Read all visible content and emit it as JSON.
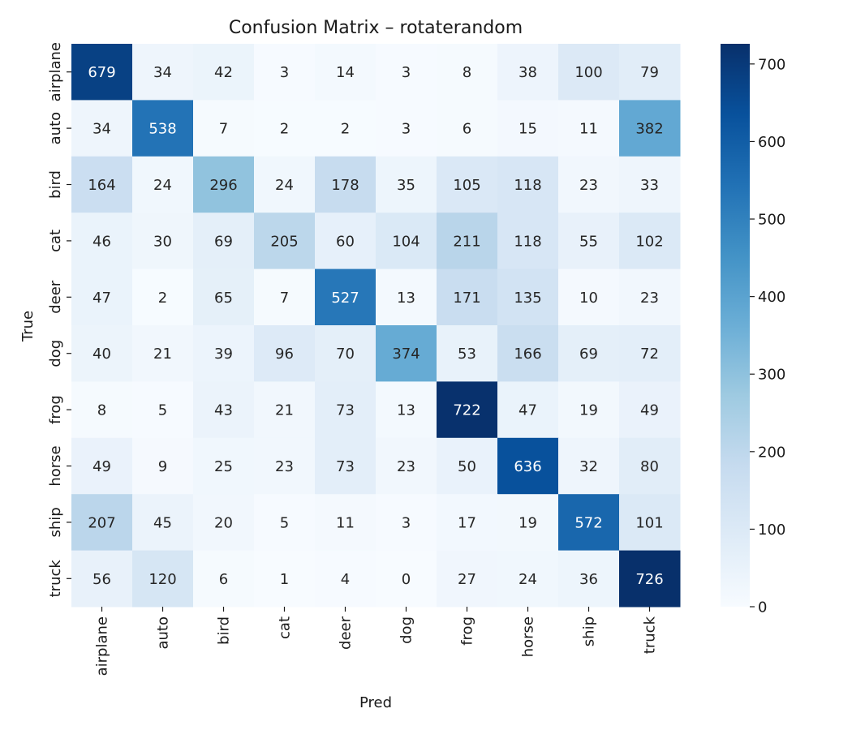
{
  "chart_data": {
    "type": "heatmap",
    "title": "Confusion Matrix – rotaterandom",
    "xlabel": "Pred",
    "ylabel": "True",
    "x_categories": [
      "airplane",
      "auto",
      "bird",
      "cat",
      "deer",
      "dog",
      "frog",
      "horse",
      "ship",
      "truck"
    ],
    "y_categories": [
      "airplane",
      "auto",
      "bird",
      "cat",
      "deer",
      "dog",
      "frog",
      "horse",
      "ship",
      "truck"
    ],
    "values": [
      [
        679,
        34,
        42,
        3,
        14,
        3,
        8,
        38,
        100,
        79
      ],
      [
        34,
        538,
        7,
        2,
        2,
        3,
        6,
        15,
        11,
        382
      ],
      [
        164,
        24,
        296,
        24,
        178,
        35,
        105,
        118,
        23,
        33
      ],
      [
        46,
        30,
        69,
        205,
        60,
        104,
        211,
        118,
        55,
        102
      ],
      [
        47,
        2,
        65,
        7,
        527,
        13,
        171,
        135,
        10,
        23
      ],
      [
        40,
        21,
        39,
        96,
        70,
        374,
        53,
        166,
        69,
        72
      ],
      [
        8,
        5,
        43,
        21,
        73,
        13,
        722,
        47,
        19,
        49
      ],
      [
        49,
        9,
        25,
        23,
        73,
        23,
        50,
        636,
        32,
        80
      ],
      [
        207,
        45,
        20,
        5,
        11,
        3,
        17,
        19,
        572,
        101
      ],
      [
        56,
        120,
        6,
        1,
        4,
        0,
        27,
        24,
        36,
        726
      ]
    ],
    "colormap": "Blues",
    "color_range": [
      0,
      726
    ],
    "colorbar_ticks": [
      0,
      100,
      200,
      300,
      400,
      500,
      600,
      700
    ],
    "colorbar_position": "right",
    "grid": false
  }
}
